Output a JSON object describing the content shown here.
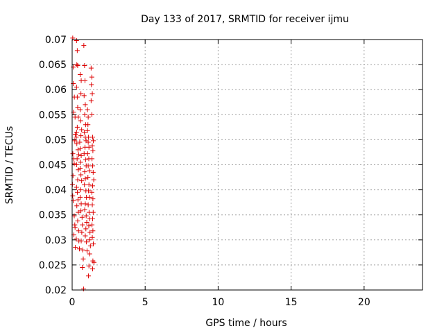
{
  "chart_data": {
    "type": "scatter",
    "title": "Day 133 of 2017, SRMTID for receiver ijmu",
    "xlabel": "GPS time / hours",
    "ylabel": "SRMTID / TECUs",
    "xlim": [
      0,
      24
    ],
    "ylim": [
      0.02,
      0.07
    ],
    "xticks": [
      0,
      5,
      10,
      15,
      20
    ],
    "yticks": [
      0.02,
      0.025,
      0.03,
      0.035,
      0.04,
      0.045,
      0.05,
      0.055,
      0.06,
      0.065,
      0.07
    ],
    "grid": true,
    "marker": "+",
    "marker_color": "#dd0000",
    "points": [
      [
        0.04,
        0.0703
      ],
      [
        0.08,
        0.0645
      ],
      [
        0.08,
        0.0612
      ],
      [
        0.1,
        0.0555
      ],
      [
        0.15,
        0.0585
      ],
      [
        0.2,
        0.0545
      ],
      [
        0.18,
        0.0498
      ],
      [
        0.22,
        0.0511
      ],
      [
        0.05,
        0.0472
      ],
      [
        0.12,
        0.0462
      ],
      [
        0.14,
        0.0452
      ],
      [
        0.06,
        0.0428
      ],
      [
        0.02,
        0.0411
      ],
      [
        0.04,
        0.0388
      ],
      [
        0.08,
        0.0378
      ],
      [
        0.14,
        0.0348
      ],
      [
        0.18,
        0.033
      ],
      [
        0.2,
        0.0325
      ],
      [
        0.12,
        0.031
      ],
      [
        0.22,
        0.0285
      ],
      [
        0.28,
        0.0302
      ],
      [
        0.3,
        0.0698
      ],
      [
        0.35,
        0.0678
      ],
      [
        0.32,
        0.065
      ],
      [
        0.38,
        0.0648
      ],
      [
        0.3,
        0.0605
      ],
      [
        0.35,
        0.0585
      ],
      [
        0.38,
        0.0565
      ],
      [
        0.42,
        0.0545
      ],
      [
        0.35,
        0.0525
      ],
      [
        0.3,
        0.0515
      ],
      [
        0.28,
        0.0505
      ],
      [
        0.32,
        0.0492
      ],
      [
        0.4,
        0.048
      ],
      [
        0.45,
        0.047
      ],
      [
        0.34,
        0.0462
      ],
      [
        0.3,
        0.045
      ],
      [
        0.42,
        0.044
      ],
      [
        0.38,
        0.042
      ],
      [
        0.3,
        0.0405
      ],
      [
        0.36,
        0.0395
      ],
      [
        0.4,
        0.038
      ],
      [
        0.32,
        0.0368
      ],
      [
        0.42,
        0.0355
      ],
      [
        0.38,
        0.0338
      ],
      [
        0.44,
        0.0318
      ],
      [
        0.46,
        0.0298
      ],
      [
        0.5,
        0.0282
      ],
      [
        0.55,
        0.063
      ],
      [
        0.62,
        0.0618
      ],
      [
        0.6,
        0.0592
      ],
      [
        0.55,
        0.056
      ],
      [
        0.58,
        0.0538
      ],
      [
        0.65,
        0.052
      ],
      [
        0.6,
        0.0508
      ],
      [
        0.52,
        0.0495
      ],
      [
        0.56,
        0.0482
      ],
      [
        0.62,
        0.0468
      ],
      [
        0.58,
        0.0455
      ],
      [
        0.55,
        0.0443
      ],
      [
        0.6,
        0.043
      ],
      [
        0.65,
        0.0418
      ],
      [
        0.58,
        0.04
      ],
      [
        0.55,
        0.0385
      ],
      [
        0.62,
        0.0372
      ],
      [
        0.6,
        0.0358
      ],
      [
        0.68,
        0.0345
      ],
      [
        0.7,
        0.033
      ],
      [
        0.66,
        0.0315
      ],
      [
        0.62,
        0.0298
      ],
      [
        0.72,
        0.028
      ],
      [
        0.76,
        0.0262
      ],
      [
        0.7,
        0.0245
      ],
      [
        0.78,
        0.0202
      ],
      [
        0.8,
        0.0688
      ],
      [
        0.85,
        0.0648
      ],
      [
        0.88,
        0.0618
      ],
      [
        0.82,
        0.0588
      ],
      [
        0.9,
        0.057
      ],
      [
        0.86,
        0.055
      ],
      [
        0.92,
        0.053
      ],
      [
        0.84,
        0.0515
      ],
      [
        0.9,
        0.0505
      ],
      [
        0.95,
        0.0498
      ],
      [
        0.88,
        0.0485
      ],
      [
        0.82,
        0.0472
      ],
      [
        0.92,
        0.046
      ],
      [
        0.96,
        0.0448
      ],
      [
        0.86,
        0.0436
      ],
      [
        0.9,
        0.0422
      ],
      [
        0.84,
        0.041
      ],
      [
        0.94,
        0.0398
      ],
      [
        0.98,
        0.0385
      ],
      [
        0.9,
        0.0372
      ],
      [
        0.86,
        0.036
      ],
      [
        0.96,
        0.0348
      ],
      [
        1.0,
        0.0335
      ],
      [
        0.94,
        0.0322
      ],
      [
        0.9,
        0.0308
      ],
      [
        0.98,
        0.0296
      ],
      [
        1.02,
        0.0278
      ],
      [
        1.05,
        0.056
      ],
      [
        1.1,
        0.0545
      ],
      [
        1.08,
        0.053
      ],
      [
        1.05,
        0.0518
      ],
      [
        1.12,
        0.0505
      ],
      [
        1.1,
        0.0495
      ],
      [
        1.15,
        0.0485
      ],
      [
        1.06,
        0.0472
      ],
      [
        1.14,
        0.0462
      ],
      [
        1.1,
        0.0448
      ],
      [
        1.18,
        0.0438
      ],
      [
        1.08,
        0.0425
      ],
      [
        1.15,
        0.041
      ],
      [
        1.12,
        0.0398
      ],
      [
        1.2,
        0.0385
      ],
      [
        1.1,
        0.037
      ],
      [
        1.16,
        0.0355
      ],
      [
        1.2,
        0.0342
      ],
      [
        1.14,
        0.0328
      ],
      [
        1.22,
        0.0315
      ],
      [
        1.18,
        0.03
      ],
      [
        1.25,
        0.0288
      ],
      [
        1.2,
        0.0272
      ],
      [
        1.15,
        0.0248
      ],
      [
        1.12,
        0.0228
      ],
      [
        1.3,
        0.0643
      ],
      [
        1.35,
        0.0625
      ],
      [
        1.32,
        0.061
      ],
      [
        1.38,
        0.0592
      ],
      [
        1.3,
        0.0578
      ],
      [
        1.35,
        0.055
      ],
      [
        1.4,
        0.0505
      ],
      [
        1.45,
        0.0498
      ],
      [
        1.38,
        0.0488
      ],
      [
        1.42,
        0.0478
      ],
      [
        1.36,
        0.0462
      ],
      [
        1.4,
        0.0448
      ],
      [
        1.44,
        0.0435
      ],
      [
        1.48,
        0.042
      ],
      [
        1.4,
        0.0408
      ],
      [
        1.35,
        0.0395
      ],
      [
        1.42,
        0.0382
      ],
      [
        1.38,
        0.037
      ],
      [
        1.44,
        0.0355
      ],
      [
        1.4,
        0.0342
      ],
      [
        1.36,
        0.033
      ],
      [
        1.42,
        0.0318
      ],
      [
        1.38,
        0.0305
      ],
      [
        1.45,
        0.0292
      ],
      [
        1.42,
        0.0258
      ],
      [
        1.5,
        0.0255
      ],
      [
        1.4,
        0.0242
      ]
    ]
  }
}
